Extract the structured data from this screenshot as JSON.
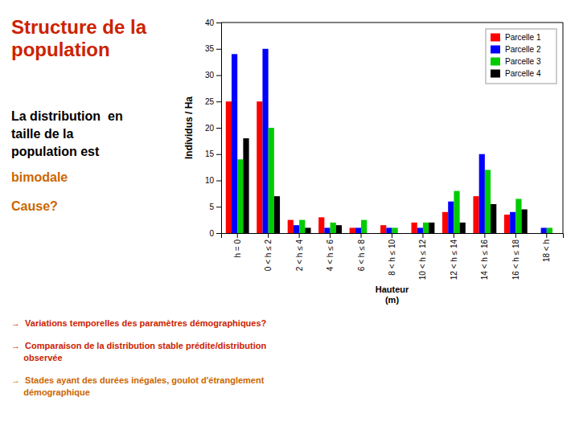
{
  "chart_data": {
    "type": "bar",
    "title": "Structure de la\npopulation",
    "categories": [
      "h = 0",
      "0 < h ≤ 2",
      "2 < h ≤ 4",
      "4 < h ≤ 6",
      "6 < h ≤ 8",
      "8 < h ≤ 10",
      "10 < h ≤ 12",
      "12 < h ≤ 14",
      "14 < h ≤ 16",
      "16 < h ≤ 18",
      "18 < h"
    ],
    "series": [
      {
        "name": "Parcelle 1",
        "color": "#ff0000",
        "values": [
          25,
          25,
          2.5,
          3,
          1,
          1.5,
          2,
          4,
          7,
          3.5,
          0
        ]
      },
      {
        "name": "Parcelle 2",
        "color": "#0000ff",
        "values": [
          34,
          35,
          1.5,
          1,
          1,
          1,
          1,
          6,
          15,
          4,
          1
        ]
      },
      {
        "name": "Parcelle 3",
        "color": "#00cc00",
        "values": [
          14,
          20,
          2.5,
          2,
          2.5,
          1,
          2,
          8,
          12,
          6.5,
          1
        ]
      },
      {
        "name": "Parcelle 4",
        "color": "#000000",
        "values": [
          18,
          7,
          1,
          1.5,
          0,
          0,
          2,
          2,
          5.5,
          4.5,
          0
        ]
      }
    ],
    "ylabel": "Individus / Ha",
    "xlabel": "Hauteur\n(m)",
    "ylim": [
      0,
      40
    ],
    "yticks": [
      0,
      5,
      10,
      15,
      20,
      25,
      30,
      35,
      40
    ],
    "legend": "upper right",
    "annotations": [
      {
        "text": "La distribution  en\ntaille de la\npopulation est",
        "color": "#000000"
      },
      {
        "text": "bimodale",
        "color": "#cc6600"
      },
      {
        "text": "Cause?",
        "color": "#cc6600"
      },
      {
        "text": "→  Variations temporelles des paramètres démographiques?",
        "color": "#cc2200"
      },
      {
        "text": "→  Comparaison de la distribution stable prédite/distribution\n     observée",
        "color": "#cc2200"
      },
      {
        "text": "→  Stades ayant des durées inégales, goulot d'étranglement\n     démographique",
        "color": "#cc6600"
      }
    ]
  }
}
